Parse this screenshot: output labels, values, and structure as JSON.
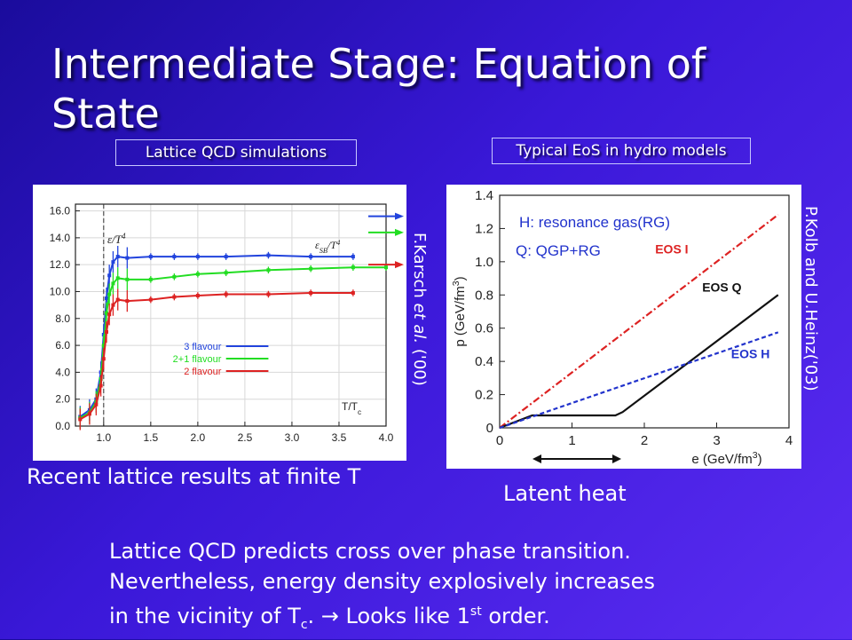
{
  "slide": {
    "title": "Intermediate Stage: Equation of State",
    "left_box_label": "Lattice QCD simulations",
    "right_box_label": "Typical EoS in hydro models",
    "left_reference": "F.Karsch et al. ('00)",
    "left_reference_main": "F.Karsch ",
    "left_reference_italic": "et al.",
    "left_reference_tail": " ('00)",
    "right_reference": "P.Kolb and U.Heinz('03)",
    "left_caption": "Recent lattice results at finite T",
    "right_caption": "Latent heat",
    "bottom_line1": "Lattice QCD predicts cross over phase transition.",
    "bottom_line2": "Nevertheless, energy density explosively increases",
    "bottom_line3_a": "in the vicinity of T",
    "bottom_line3_sub": "c",
    "bottom_line3_b": ".  → Looks like 1",
    "bottom_line3_sup": "st",
    "bottom_line3_c": " order."
  },
  "chart_data": [
    {
      "type": "line",
      "title": "",
      "xlabel": "T/T",
      "xlabel_sub": "c",
      "ylabel": "ε/T",
      "ylabel_sup": "4",
      "sb_label": "ε",
      "sb_label_sub": "SB",
      "sb_label_tail": "/T",
      "sb_label_sup": "4",
      "xlim": [
        0.7,
        4.0
      ],
      "ylim": [
        0,
        16.5
      ],
      "x_ticks": [
        "1.0",
        "1.5",
        "2.0",
        "2.5",
        "3.0",
        "3.5",
        "4.0"
      ],
      "x_tick_values": [
        1.0,
        1.5,
        2.0,
        2.5,
        3.0,
        3.5,
        4.0
      ],
      "y_ticks": [
        "0.0",
        "2.0",
        "4.0",
        "6.0",
        "8.0",
        "10.0",
        "12.0",
        "14.0",
        "16.0"
      ],
      "y_tick_values": [
        0,
        2,
        4,
        6,
        8,
        10,
        12,
        14,
        16
      ],
      "legend_position": "lower-center",
      "series": [
        {
          "name": "3 flavour",
          "color": "#2244dd",
          "x": [
            0.75,
            0.85,
            0.92,
            0.97,
            1.0,
            1.03,
            1.06,
            1.1,
            1.15,
            1.25,
            1.5,
            1.75,
            2.0,
            2.3,
            2.75,
            3.2,
            3.65
          ],
          "y": [
            0.7,
            1.2,
            2.0,
            4.0,
            6.8,
            9.5,
            11.2,
            12.2,
            12.6,
            12.5,
            12.6,
            12.6,
            12.6,
            12.6,
            12.7,
            12.6,
            12.6
          ],
          "sb_limit": 15.6
        },
        {
          "name": "2+1 flavour",
          "color": "#22dd22",
          "x": [
            0.75,
            0.85,
            0.92,
            0.97,
            1.0,
            1.03,
            1.06,
            1.1,
            1.15,
            1.25,
            1.5,
            1.75,
            2.0,
            2.3,
            2.75,
            3.2,
            3.65,
            4.0
          ],
          "y": [
            0.6,
            1.0,
            1.8,
            3.5,
            6.0,
            8.4,
            9.8,
            10.6,
            11.0,
            10.9,
            10.9,
            11.1,
            11.3,
            11.4,
            11.6,
            11.7,
            11.8,
            11.8
          ],
          "sb_limit": 14.4
        },
        {
          "name": "2 flavour",
          "color": "#dd2222",
          "x": [
            0.75,
            0.85,
            0.92,
            0.97,
            1.0,
            1.03,
            1.06,
            1.1,
            1.15,
            1.25,
            1.5,
            1.75,
            2.0,
            2.3,
            2.75,
            3.2,
            3.65
          ],
          "y": [
            0.5,
            0.9,
            1.6,
            3.0,
            5.0,
            7.0,
            8.3,
            9.0,
            9.4,
            9.3,
            9.4,
            9.6,
            9.7,
            9.8,
            9.8,
            9.9,
            9.9
          ],
          "sb_limit": 12.0
        }
      ]
    },
    {
      "type": "line",
      "title": "",
      "xlabel": "e (GeV/fm",
      "xlabel_sup": "3",
      "xlabel_tail": ")",
      "ylabel": "p (GeV/fm",
      "ylabel_sup": "3",
      "ylabel_tail": ")",
      "xlim": [
        0,
        4
      ],
      "ylim": [
        0,
        1.4
      ],
      "x_ticks": [
        "0",
        "1",
        "2",
        "3",
        "4"
      ],
      "x_tick_values": [
        0,
        1,
        2,
        3,
        4
      ],
      "y_ticks": [
        "0",
        "0.2",
        "0.4",
        "0.6",
        "0.8",
        "1.0",
        "1.2",
        "1.4"
      ],
      "y_tick_values": [
        0,
        0.2,
        0.4,
        0.6,
        0.8,
        1.0,
        1.2,
        1.4
      ],
      "annotation_h": "H: resonance gas(RG)",
      "annotation_q": "Q: QGP+RG",
      "series": [
        {
          "name": "EOS I",
          "color": "#dd2222",
          "x": [
            0,
            3.85
          ],
          "y": [
            0,
            1.283
          ]
        },
        {
          "name": "EOS Q",
          "color": "#111111",
          "x": [
            0,
            0.45,
            1.6,
            1.7,
            3.85
          ],
          "y": [
            0,
            0.075,
            0.075,
            0.095,
            0.8
          ]
        },
        {
          "name": "EOS H",
          "color": "#2233cc",
          "x": [
            0,
            3.85
          ],
          "y": [
            0,
            0.575
          ]
        }
      ],
      "latent_heat_range": [
        0.45,
        1.6
      ]
    }
  ]
}
